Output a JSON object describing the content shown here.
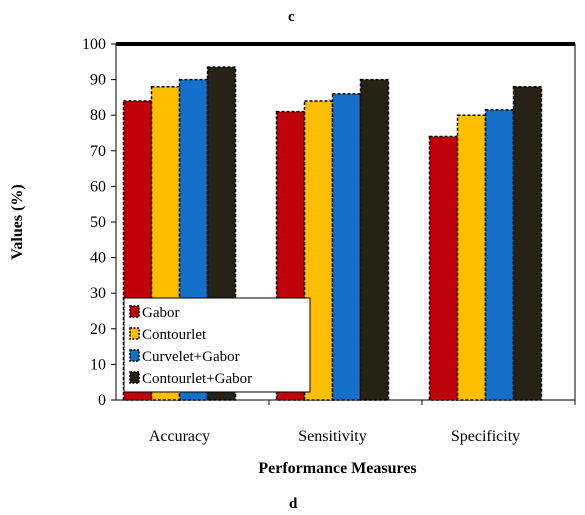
{
  "panel_labels": {
    "top": "c",
    "bottom": "d"
  },
  "chart_data": {
    "type": "bar",
    "title": "",
    "xlabel": "Performance Measures",
    "ylabel": "Values (%)",
    "ylim": [
      0,
      100
    ],
    "yticks": [
      0,
      10,
      20,
      30,
      40,
      50,
      60,
      70,
      80,
      90,
      100
    ],
    "categories": [
      "Accuracy",
      "Sensitivity",
      "Specificity"
    ],
    "series": [
      {
        "name": "Gabor",
        "values": [
          84,
          81,
          74
        ],
        "color": "#c0000b"
      },
      {
        "name": "Contourlet",
        "values": [
          88,
          84,
          80
        ],
        "color": "#ffbf00"
      },
      {
        "name": "Curvelet+Gabor",
        "values": [
          90,
          86,
          81.5
        ],
        "color": "#1470c8"
      },
      {
        "name": "Contourlet+Gabor",
        "values": [
          93.5,
          90,
          88
        ],
        "color": "#262216"
      }
    ],
    "grid": false,
    "legend_position": "bottom-left"
  }
}
